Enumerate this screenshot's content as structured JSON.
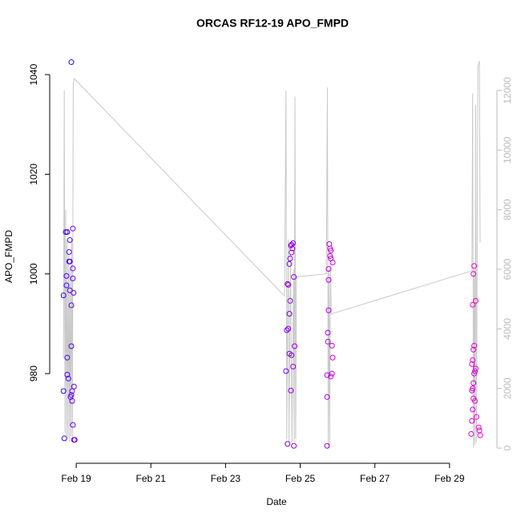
{
  "chart_data": {
    "type": "scatter",
    "title": "ORCAS RF12-19 APO_FMPD",
    "x_label": "Date",
    "y_label": "APO_FMPD",
    "xlim": [
      18.29,
      30.27
    ],
    "xticks": [
      {
        "value": 19,
        "label": "Feb 19"
      },
      {
        "value": 21,
        "label": "Feb 21"
      },
      {
        "value": 23,
        "label": "Feb 23"
      },
      {
        "value": 25,
        "label": "Feb 25"
      },
      {
        "value": 27,
        "label": "Feb 27"
      },
      {
        "value": 29,
        "label": "Feb 29"
      }
    ],
    "ylim": [
      962,
      1045
    ],
    "yticks": [
      980,
      1000,
      1020,
      1040
    ],
    "y2lim": [
      -510,
      13370
    ],
    "y2ticks": [
      0,
      2000,
      4000,
      6000,
      8000,
      10000,
      12000
    ],
    "y2_color": "#bbbbbb",
    "color_range": [
      "#3300ff",
      "#ff00cc"
    ],
    "points": {
      "x": [
        18.87,
        18.66,
        18.66,
        18.68,
        18.72,
        18.76,
        18.74,
        18.74,
        18.76,
        18.76,
        18.79,
        18.81,
        18.81,
        18.83,
        18.83,
        18.83,
        18.85,
        18.87,
        18.87,
        18.87,
        18.89,
        18.91,
        18.91,
        18.91,
        18.94,
        18.91,
        18.94,
        18.96,
        18.93,
        18.89,
        24.62,
        24.64,
        24.66,
        24.66,
        24.68,
        24.71,
        24.71,
        24.73,
        24.71,
        24.73,
        24.75,
        24.75,
        24.77,
        24.77,
        24.81,
        24.79,
        24.81,
        24.83,
        24.85,
        24.83,
        24.68,
        24.77,
        25.72,
        25.72,
        25.72,
        25.74,
        25.74,
        25.76,
        25.76,
        25.76,
        25.78,
        25.8,
        25.8,
        25.82,
        25.82,
        25.85,
        25.85,
        25.87,
        25.87,
        25.82,
        29.58,
        29.6,
        29.62,
        29.64,
        29.6,
        29.62,
        29.64,
        29.66,
        29.68,
        29.7,
        29.6,
        29.62,
        29.64,
        29.66,
        29.62,
        29.7,
        29.64,
        29.66,
        29.78,
        29.8,
        29.82,
        29.68,
        29.72
      ],
      "values": [
        1042.5,
        995.7,
        976.5,
        967.0,
        1008.4,
        1008.4,
        997.7,
        999.6,
        979.8,
        983.2,
        979.0,
        1004.4,
        1002.5,
        1002.5,
        996.7,
        1006.8,
        975.3,
        975.7,
        985.5,
        993.7,
        974.5,
        999.1,
        1009.1,
        1001.1,
        977.4,
        969.7,
        966.7,
        966.7,
        996.2,
        976.5,
        980.5,
        988.7,
        998.0,
        965.9,
        989.0,
        992.0,
        984.0,
        1003.1,
        1002.0,
        994.6,
        1005.7,
        976.6,
        983.7,
        1005.9,
        981.4,
        1005.1,
        1006.2,
        999.4,
        985.5,
        965.5,
        997.8,
        1004.3,
        965.5,
        975.3,
        979.7,
        986.4,
        988.2,
        992.7,
        998.8,
        1001.0,
        1006.0,
        1005.1,
        1003.6,
        1003.1,
        1004.7,
        985.6,
        980.0,
        1002.3,
        983.2,
        979.4,
        967.9,
        970.5,
        972.8,
        975.0,
        976.6,
        977.0,
        978.1,
        980.0,
        980.5,
        981.0,
        981.9,
        982.7,
        984.8,
        985.6,
        993.8,
        994.6,
        1000.0,
        1001.6,
        969.2,
        968.6,
        967.6,
        974.5,
        971.3
      ]
    },
    "line": {
      "axis": "y2",
      "color": "#c8c8c8",
      "x": [
        18.66,
        18.68,
        18.7,
        18.72,
        18.74,
        18.76,
        18.78,
        18.8,
        18.82,
        18.84,
        18.86,
        18.88,
        18.9,
        18.92,
        18.95,
        24.58,
        24.62,
        24.64,
        24.68,
        24.7,
        24.74,
        24.78,
        24.82,
        24.84,
        24.86,
        24.88,
        24.9,
        25.7,
        25.73,
        25.75,
        25.77,
        25.79,
        25.81,
        25.83,
        29.6,
        29.62,
        29.64,
        29.66,
        29.68,
        29.7,
        29.72,
        29.76,
        29.8,
        29.82
      ],
      "values": [
        3000,
        12000,
        500,
        8000,
        200,
        7000,
        300,
        6500,
        200,
        6000,
        400,
        7000,
        300,
        12200,
        12400,
        5100,
        12000,
        300,
        7000,
        200,
        6500,
        100,
        6000,
        200,
        11800,
        300,
        5750,
        5850,
        12100,
        0,
        6000,
        100,
        6200,
        4500,
        5950,
        11900,
        0,
        6000,
        100,
        11500,
        200,
        12800,
        13000,
        6900
      ]
    }
  }
}
